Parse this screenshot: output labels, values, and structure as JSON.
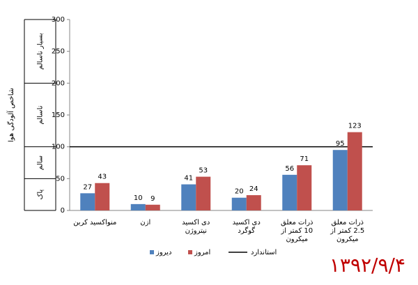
{
  "chart_data": {
    "type": "bar",
    "y_label": "شاخص آلودگی هوا",
    "categories": [
      "منواکسید کربن",
      "ازن",
      "دی اکسید\nنیتروژن",
      "دی اکسید\nگوگرد",
      "ذرات معلق\n10 کمتر از\nمیکرون",
      "ذرات معلق\n2.5 کمتر از\nمیکرون"
    ],
    "series": [
      {
        "name": "دیروز",
        "color": "#4f81bd",
        "values": [
          27,
          10,
          41,
          20,
          56,
          95
        ]
      },
      {
        "name": "امروز",
        "color": "#c0504d",
        "values": [
          43,
          9,
          53,
          24,
          71,
          123
        ]
      }
    ],
    "standard": {
      "name": "استاندارد",
      "value": 100,
      "color": "#000000"
    },
    "bands": [
      {
        "label": "پاک",
        "range": [
          0,
          50
        ]
      },
      {
        "label": "سالم",
        "range": [
          50,
          100
        ]
      },
      {
        "label": "ناسالم",
        "range": [
          100,
          200
        ]
      },
      {
        "label": "بسیار ناسالم",
        "range": [
          200,
          300
        ]
      }
    ],
    "ylim": [
      0,
      300
    ],
    "yticks": [
      0,
      50,
      100,
      150,
      200,
      250,
      300
    ],
    "date": "۱۳۹۲/۹/۴"
  }
}
